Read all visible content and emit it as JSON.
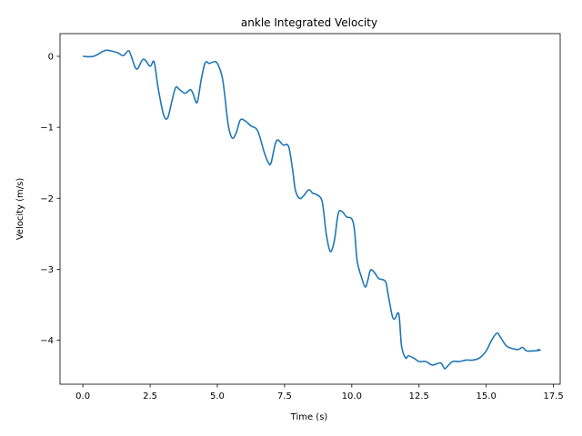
{
  "chart_data": {
    "type": "line",
    "title": "ankle Integrated Velocity",
    "xlabel": "Time (s)",
    "ylabel": "Velocity (m/s)",
    "xlim": [
      -0.85,
      17.75
    ],
    "ylim": [
      -4.62,
      0.32
    ],
    "xticks": [
      0.0,
      2.5,
      5.0,
      7.5,
      10.0,
      12.5,
      15.0,
      17.5
    ],
    "xtick_labels": [
      "0.0",
      "2.5",
      "5.0",
      "7.5",
      "10.0",
      "12.5",
      "15.0",
      "17.5"
    ],
    "yticks": [
      0,
      -1,
      -2,
      -3,
      -4
    ],
    "ytick_labels": [
      "0",
      "−1",
      "−2",
      "−3",
      "−4"
    ],
    "grid": false,
    "line_color": "#1f77b4",
    "series": [
      {
        "x": [
          0,
          0.4,
          0.8,
          1.0,
          1.3,
          1.5,
          1.7,
          1.8,
          2.0,
          2.25,
          2.5,
          2.65,
          2.8,
          3.0,
          3.15,
          3.3,
          3.45,
          3.6,
          3.8,
          4.0,
          4.1,
          4.25,
          4.4,
          4.55,
          4.7,
          4.85,
          5.0,
          5.2,
          5.4,
          5.55,
          5.7,
          5.85,
          6.0,
          6.25,
          6.5,
          6.75,
          6.9,
          7.0,
          7.2,
          7.45,
          7.65,
          7.8,
          7.9,
          8.05,
          8.2,
          8.4,
          8.55,
          8.7,
          8.9,
          9.05,
          9.2,
          9.35,
          9.5,
          9.65,
          9.8,
          10.0,
          10.1,
          10.2,
          10.35,
          10.5,
          10.6,
          10.7,
          10.85,
          11.0,
          11.25,
          11.35,
          11.5,
          11.6,
          11.75,
          11.85,
          12.0,
          12.1,
          12.3,
          12.5,
          12.75,
          13.0,
          13.3,
          13.45,
          13.55,
          13.75,
          14.0,
          14.25,
          14.5,
          14.75,
          15.0,
          15.2,
          15.4,
          15.55,
          15.75,
          16.0,
          16.2,
          16.35,
          16.5,
          16.75,
          17.0,
          16.9
        ],
        "y": [
          0,
          0.0,
          0.08,
          0.08,
          0.05,
          0.01,
          0.08,
          0.0,
          -0.18,
          -0.04,
          -0.14,
          -0.08,
          -0.45,
          -0.82,
          -0.87,
          -0.65,
          -0.44,
          -0.47,
          -0.52,
          -0.47,
          -0.53,
          -0.65,
          -0.33,
          -0.09,
          -0.1,
          -0.08,
          -0.1,
          -0.33,
          -0.95,
          -1.15,
          -1.08,
          -0.9,
          -0.9,
          -0.98,
          -1.05,
          -1.36,
          -1.5,
          -1.5,
          -1.19,
          -1.25,
          -1.27,
          -1.6,
          -1.88,
          -2.0,
          -1.97,
          -1.88,
          -1.93,
          -1.95,
          -2.05,
          -2.5,
          -2.75,
          -2.6,
          -2.21,
          -2.19,
          -2.26,
          -2.29,
          -2.45,
          -2.88,
          -3.1,
          -3.25,
          -3.15,
          -3.01,
          -3.05,
          -3.13,
          -3.17,
          -3.35,
          -3.65,
          -3.7,
          -3.63,
          -4.08,
          -4.25,
          -4.22,
          -4.25,
          -4.3,
          -4.3,
          -4.35,
          -4.32,
          -4.4,
          -4.37,
          -4.3,
          -4.3,
          -4.28,
          -4.28,
          -4.25,
          -4.15,
          -4.0,
          -3.9,
          -3.97,
          -4.08,
          -4.12,
          -4.13,
          -4.1,
          -4.15,
          -4.15,
          -4.14,
          -4.13
        ]
      }
    ]
  }
}
